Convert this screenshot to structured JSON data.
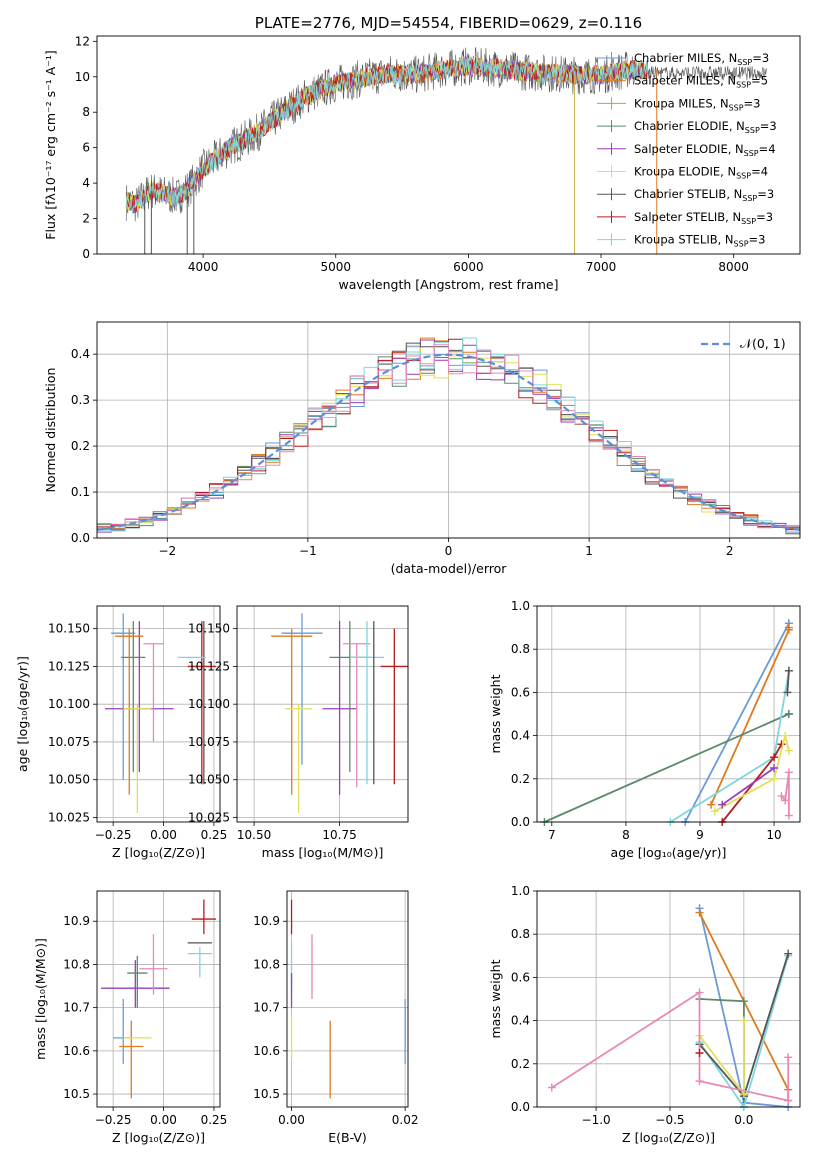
{
  "chart_data": [
    {
      "type": "line",
      "title": "PLATE=2776, MJD=54554, FIBERID=0629, z=0.116",
      "xlabel": "wavelength [Angstrom, rest frame]",
      "ylabel": "Flux [fλ10⁻¹⁷ erg cm⁻² s⁻¹ A⁻¹]",
      "xlim": [
        3200,
        8500
      ],
      "ylim": [
        0,
        12.3
      ],
      "xticks": [
        4000,
        5000,
        6000,
        7000,
        8000
      ],
      "yticks": [
        0,
        2,
        4,
        6,
        8,
        10,
        12
      ],
      "grid": false,
      "legend_position": "right",
      "spectrum_approx": {
        "wavelength": [
          3400,
          3500,
          3600,
          3700,
          3800,
          3900,
          4000,
          4200,
          4400,
          4600,
          4800,
          5000,
          5200,
          5400,
          5600,
          5800,
          6000,
          6200,
          6400,
          6600,
          6800,
          7000,
          7200
        ],
        "flux": [
          3.0,
          2.8,
          3.6,
          3.4,
          3.2,
          3.8,
          4.8,
          6.0,
          6.8,
          8.0,
          9.0,
          9.6,
          9.9,
          10.2,
          10.1,
          10.4,
          10.6,
          10.5,
          10.3,
          10.2,
          10.1,
          10.1,
          10.4
        ]
      },
      "series": [
        {
          "name": "Chabrier MILES, N",
          "sub": "SSP",
          "suffix": "=3",
          "color": "#6a9ad8"
        },
        {
          "name": "Salpeter MILES, N",
          "sub": "SSP",
          "suffix": "=5",
          "color": "#e07a1f"
        },
        {
          "name": "Kroupa MILES, N",
          "sub": "SSP",
          "suffix": "=3",
          "color": "#c89a4c"
        },
        {
          "name": "Chabrier ELODIE, N",
          "sub": "SSP",
          "suffix": "=3",
          "color": "#5a8a6a"
        },
        {
          "name": "Salpeter ELODIE, N",
          "sub": "SSP",
          "suffix": "=4",
          "color": "#9a3cb8"
        },
        {
          "name": "Kroupa ELODIE, N",
          "sub": "SSP",
          "suffix": "=4",
          "color": "#e0e05a"
        },
        {
          "name": "Chabrier STELIB, N",
          "sub": "SSP",
          "suffix": "=3",
          "color": "#555555"
        },
        {
          "name": "Salpeter STELIB, N",
          "sub": "SSP",
          "suffix": "=3",
          "color": "#b81c1c"
        },
        {
          "name": "Kroupa STELIB, N",
          "sub": "SSP",
          "suffix": "=3",
          "color": "#7ed6dc"
        }
      ]
    },
    {
      "type": "line",
      "xlabel": "(data-model)/error",
      "ylabel": "Normed distribution",
      "xlim": [
        -2.5,
        2.5
      ],
      "ylim": [
        0,
        0.47
      ],
      "xticks": [
        -2,
        -1,
        0,
        1,
        2
      ],
      "yticks": [
        0.0,
        0.1,
        0.2,
        0.3,
        0.4
      ],
      "grid": true,
      "legend_label": "𝒩(0, 1)",
      "legend_position": "top-right",
      "histogram_colors": [
        "#6a9ad8",
        "#e07a1f",
        "#5a8a6a",
        "#9a3cb8",
        "#e0e05a",
        "#555555",
        "#b81c1c",
        "#7ed6dc",
        "#e888b8"
      ]
    },
    {
      "type": "scatter",
      "xlabel": "Z [log₁₀(Z/Z⊙)]",
      "ylabel": "age  [log₁₀(age/yr)]",
      "xlim": [
        -0.33,
        0.28
      ],
      "ylim": [
        10.022,
        10.165
      ],
      "xticks": [
        -0.25,
        0.0,
        0.25
      ],
      "xtick_labels": [
        "−0.25",
        "0.00",
        "0.25"
      ],
      "yticks": [
        10.025,
        10.05,
        10.075,
        10.1,
        10.125,
        10.15
      ],
      "ytick_labels": [
        "10.025",
        "10.050",
        "10.075",
        "10.100",
        "10.125",
        "10.150"
      ],
      "grid": true,
      "points": [
        {
          "x": -0.2,
          "y": 10.147,
          "xerr": 0.06,
          "ylo": 10.05,
          "yhi": 10.16,
          "color": "#6a9ad8"
        },
        {
          "x": -0.12,
          "y": 10.097,
          "xerr": 0.17,
          "ylo": 10.055,
          "yhi": 10.155,
          "color": "#9a3cb8"
        },
        {
          "x": -0.15,
          "y": 10.131,
          "xerr": 0.06,
          "ylo": 10.055,
          "yhi": 10.155,
          "color": "#5a8a6a"
        },
        {
          "x": -0.17,
          "y": 10.145,
          "xerr": 0.07,
          "ylo": 10.04,
          "yhi": 10.15,
          "color": "#e07a1f"
        },
        {
          "x": -0.13,
          "y": 10.097,
          "xerr": 0.07,
          "ylo": 10.028,
          "yhi": 10.1,
          "color": "#e0e05a"
        },
        {
          "x": -0.05,
          "y": 10.14,
          "xerr": 0.05,
          "ylo": 10.075,
          "yhi": 10.14,
          "color": "#e888b8"
        },
        {
          "x": 0.19,
          "y": 10.125,
          "xerr": 0.07,
          "ylo": 10.047,
          "yhi": 10.155,
          "color": "#b81c1c"
        },
        {
          "x": 0.2,
          "y": 10.125,
          "xerr": 0.0,
          "ylo": 10.047,
          "yhi": 10.155,
          "color": "#555555"
        },
        {
          "x": 0.14,
          "y": 10.131,
          "xerr": 0.07,
          "ylo": 10.131,
          "yhi": 10.131,
          "color": "#7ed6dc"
        }
      ]
    },
    {
      "type": "scatter",
      "xlabel": "mass [log₁₀(M/M⊙)]",
      "ylabel": "",
      "xlim": [
        10.45,
        10.95
      ],
      "ylim": [
        10.022,
        10.165
      ],
      "xticks": [
        10.5,
        10.75
      ],
      "xtick_labels": [
        "10.50",
        "10.75"
      ],
      "yticks": [
        10.025,
        10.05,
        10.075,
        10.1,
        10.125,
        10.15
      ],
      "ytick_labels": [
        "10.025",
        "10.050",
        "10.075",
        "10.100",
        "10.125",
        "10.150"
      ],
      "grid": true,
      "points": [
        {
          "x": 10.64,
          "y": 10.147,
          "xerr": 0.06,
          "ylo": 10.06,
          "yhi": 10.16,
          "color": "#6a9ad8"
        },
        {
          "x": 10.61,
          "y": 10.145,
          "xerr": 0.06,
          "ylo": 10.04,
          "yhi": 10.15,
          "color": "#e07a1f"
        },
        {
          "x": 10.63,
          "y": 10.097,
          "xerr": 0.04,
          "ylo": 10.028,
          "yhi": 10.1,
          "color": "#e0e05a"
        },
        {
          "x": 10.75,
          "y": 10.097,
          "xerr": 0.05,
          "ylo": 10.04,
          "yhi": 10.155,
          "color": "#9a3cb8"
        },
        {
          "x": 10.78,
          "y": 10.131,
          "xerr": 0.06,
          "ylo": 10.055,
          "yhi": 10.155,
          "color": "#5a8a6a"
        },
        {
          "x": 10.8,
          "y": 10.14,
          "xerr": 0.04,
          "ylo": 10.045,
          "yhi": 10.14,
          "color": "#e888b8"
        },
        {
          "x": 10.83,
          "y": 10.131,
          "xerr": 0.05,
          "ylo": 10.047,
          "yhi": 10.155,
          "color": "#7ed6dc"
        },
        {
          "x": 10.85,
          "y": 10.125,
          "xerr": 0.0,
          "ylo": 10.047,
          "yhi": 10.155,
          "color": "#555555"
        },
        {
          "x": 10.91,
          "y": 10.125,
          "xerr": 0.04,
          "ylo": 10.047,
          "yhi": 10.15,
          "color": "#b81c1c"
        }
      ]
    },
    {
      "type": "line",
      "xlabel": "age  [log₁₀(age/yr)]",
      "ylabel": "mass weight",
      "xlim": [
        6.8,
        10.35
      ],
      "ylim": [
        0,
        1.0
      ],
      "xticks": [
        7,
        8,
        9,
        10
      ],
      "yticks": [
        0.0,
        0.2,
        0.4,
        0.6,
        0.8,
        1.0
      ],
      "grid": true,
      "series": [
        {
          "color": "#6a9ad8",
          "x": [
            8.8,
            10.2,
            10.2
          ],
          "y": [
            0.0,
            0.92,
            0.92
          ]
        },
        {
          "color": "#e07a1f",
          "x": [
            9.15,
            10.2,
            10.2
          ],
          "y": [
            0.08,
            0.89,
            0.9
          ]
        },
        {
          "color": "#5a8a6a",
          "x": [
            6.9,
            10.2,
            10.2
          ],
          "y": [
            0.0,
            0.5,
            0.5
          ]
        },
        {
          "color": "#7ed6dc",
          "x": [
            8.6,
            10.0,
            10.2,
            10.2
          ],
          "y": [
            0.0,
            0.3,
            0.7,
            0.7
          ]
        },
        {
          "color": "#b81c1c",
          "x": [
            9.3,
            10.0,
            10.1
          ],
          "y": [
            0.0,
            0.3,
            0.36
          ]
        },
        {
          "color": "#e0e05a",
          "x": [
            9.2,
            10.0,
            10.15,
            10.2
          ],
          "y": [
            0.05,
            0.2,
            0.4,
            0.33
          ]
        },
        {
          "color": "#e888b8",
          "x": [
            10.1,
            10.15,
            10.2,
            10.2
          ],
          "y": [
            0.12,
            0.1,
            0.23,
            0.03
          ]
        },
        {
          "color": "#9a3cb8",
          "x": [
            9.3,
            10.0
          ],
          "y": [
            0.08,
            0.25
          ]
        },
        {
          "color": "#555555",
          "x": [
            10.18,
            10.2
          ],
          "y": [
            0.6,
            0.7
          ]
        }
      ]
    },
    {
      "type": "scatter",
      "xlabel": "Z [log₁₀(Z/Z⊙)]",
      "ylabel": "mass [log₁₀(M/M⊙)]",
      "xlim": [
        -0.33,
        0.28
      ],
      "ylim": [
        10.47,
        10.97
      ],
      "xticks": [
        -0.25,
        0.0,
        0.25
      ],
      "xtick_labels": [
        "−0.25",
        "0.00",
        "0.25"
      ],
      "yticks": [
        10.5,
        10.6,
        10.7,
        10.8,
        10.9
      ],
      "ytick_labels": [
        "10.5",
        "10.6",
        "10.7",
        "10.8",
        "10.9"
      ],
      "grid": true,
      "points": [
        {
          "x": -0.2,
          "y": 10.63,
          "xerr": 0.05,
          "ylo": 10.57,
          "yhi": 10.72,
          "color": "#6a9ad8"
        },
        {
          "x": -0.16,
          "y": 10.61,
          "xerr": 0.06,
          "ylo": 10.49,
          "yhi": 10.67,
          "color": "#e07a1f"
        },
        {
          "x": -0.13,
          "y": 10.63,
          "xerr": 0.07,
          "ylo": 10.63,
          "yhi": 10.63,
          "color": "#e0e05a"
        },
        {
          "x": -0.14,
          "y": 10.745,
          "xerr": 0.17,
          "ylo": 10.7,
          "yhi": 10.81,
          "color": "#9a3cb8"
        },
        {
          "x": -0.13,
          "y": 10.78,
          "xerr": 0.05,
          "ylo": 10.7,
          "yhi": 10.82,
          "color": "#5a8a6a"
        },
        {
          "x": -0.05,
          "y": 10.79,
          "xerr": 0.07,
          "ylo": 10.73,
          "yhi": 10.87,
          "color": "#e888b8"
        },
        {
          "x": 0.18,
          "y": 10.825,
          "xerr": 0.06,
          "ylo": 10.77,
          "yhi": 10.84,
          "color": "#7ed6dc"
        },
        {
          "x": 0.18,
          "y": 10.85,
          "xerr": 0.06,
          "ylo": 10.85,
          "yhi": 10.85,
          "color": "#555555"
        },
        {
          "x": 0.2,
          "y": 10.905,
          "xerr": 0.06,
          "ylo": 10.87,
          "yhi": 10.95,
          "color": "#b81c1c"
        }
      ]
    },
    {
      "type": "scatter",
      "xlabel": "E(B-V)",
      "ylabel": "",
      "xlim": [
        -0.0008,
        0.0205
      ],
      "ylim": [
        10.47,
        10.97
      ],
      "xticks": [
        0.0,
        0.02
      ],
      "xtick_labels": [
        "0.00",
        "0.02"
      ],
      "yticks": [
        10.5,
        10.6,
        10.7,
        10.8,
        10.9
      ],
      "ytick_labels": [
        "10.5",
        "10.6",
        "10.7",
        "10.8",
        "10.9"
      ],
      "grid": true,
      "points": [
        {
          "x": 0.0,
          "y": 10.905,
          "xerr": 0,
          "ylo": 10.87,
          "yhi": 10.95,
          "color": "#b81c1c"
        },
        {
          "x": 0.0,
          "y": 10.79,
          "xerr": 0,
          "ylo": 10.74,
          "yhi": 10.85,
          "color": "#7ed6dc"
        },
        {
          "x": 0.0,
          "y": 10.745,
          "xerr": 0,
          "ylo": 10.7,
          "yhi": 10.78,
          "color": "#9a3cb8"
        },
        {
          "x": 0.0,
          "y": 10.63,
          "xerr": 0,
          "ylo": 10.58,
          "yhi": 10.68,
          "color": "#e0e05a"
        },
        {
          "x": 0.0036,
          "y": 10.79,
          "xerr": 0,
          "ylo": 10.72,
          "yhi": 10.87,
          "color": "#e888b8"
        },
        {
          "x": 0.0068,
          "y": 10.61,
          "xerr": 0,
          "ylo": 10.49,
          "yhi": 10.67,
          "color": "#e07a1f"
        },
        {
          "x": 0.02,
          "y": 10.64,
          "xerr": 0,
          "ylo": 10.57,
          "yhi": 10.72,
          "color": "#6a9ad8"
        }
      ]
    },
    {
      "type": "line",
      "xlabel": "Z [log₁₀(Z/Z⊙)]",
      "ylabel": "mass weight",
      "xlim": [
        -1.4,
        0.38
      ],
      "ylim": [
        0,
        1.0
      ],
      "xticks": [
        -1.0,
        -0.5,
        0.0
      ],
      "xtick_labels": [
        "−1.0",
        "−0.5",
        "0.0"
      ],
      "yticks": [
        0.0,
        0.2,
        0.4,
        0.6,
        0.8,
        1.0
      ],
      "grid": true,
      "series": [
        {
          "color": "#6a9ad8",
          "x": [
            -0.3,
            0.0,
            0.3
          ],
          "y": [
            0.92,
            0.02,
            0.0
          ]
        },
        {
          "color": "#e07a1f",
          "x": [
            -0.3,
            0.3,
            0.3
          ],
          "y": [
            0.9,
            0.08,
            0.03
          ]
        },
        {
          "color": "#5a8a6a",
          "x": [
            -0.3,
            0.0,
            0.0
          ],
          "y": [
            0.5,
            0.49,
            0.0
          ]
        },
        {
          "color": "#7ed6dc",
          "x": [
            -0.3,
            0.0,
            0.3
          ],
          "y": [
            0.3,
            0.0,
            0.7
          ]
        },
        {
          "color": "#555555",
          "x": [
            -0.3,
            0.0,
            0.3
          ],
          "y": [
            0.29,
            0.05,
            0.71
          ]
        },
        {
          "color": "#e0e05a",
          "x": [
            -0.3,
            0.0,
            0.0
          ],
          "y": [
            0.33,
            0.06,
            0.4
          ]
        },
        {
          "color": "#e888b8",
          "x": [
            -1.3,
            -0.3,
            -0.3,
            0.3,
            0.3
          ],
          "y": [
            0.09,
            0.53,
            0.12,
            0.03,
            0.23
          ]
        },
        {
          "color": "#b81c1c",
          "x": [
            -0.3
          ],
          "y": [
            0.25
          ]
        }
      ]
    }
  ]
}
